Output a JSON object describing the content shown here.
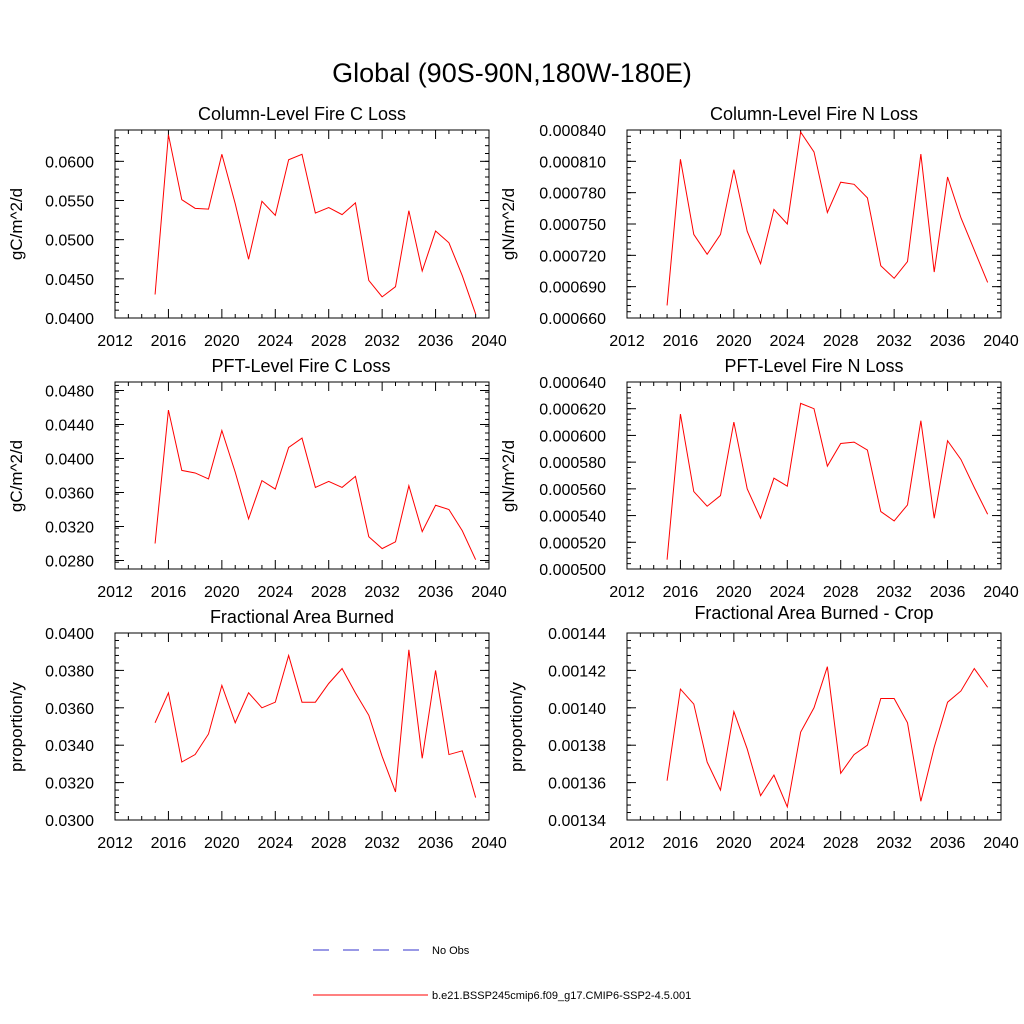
{
  "title": "Global (90S-90N,180W-180E)",
  "colors": {
    "model": "#ff0000",
    "obs": "#3333cc",
    "axes": "#000000"
  },
  "legend": {
    "obs_label": "No Obs",
    "model_label": "b.e21.BSSP245cmip6.f09_g17.CMIP6-SSP2-4.5.001"
  },
  "chart_data": [
    {
      "type": "line",
      "title": "Column-Level Fire C Loss",
      "xlabel": "",
      "ylabel": "gC/m^2/d",
      "xlim": [
        2012,
        2040
      ],
      "ylim": [
        0.04,
        0.064
      ],
      "xticks": [
        "2012",
        "2016",
        "2020",
        "2024",
        "2028",
        "2032",
        "2036",
        "2040"
      ],
      "yticks": [
        "0.0400",
        "0.0450",
        "0.0500",
        "0.0550",
        "0.0600"
      ],
      "series": [
        {
          "name": "b.e21.BSSP245cmip6.f09_g17.CMIP6-SSP2-4.5.001",
          "x": [
            2015,
            2016,
            2017,
            2018,
            2019,
            2020,
            2021,
            2022,
            2023,
            2024,
            2025,
            2026,
            2027,
            2028,
            2029,
            2030,
            2031,
            2032,
            2033,
            2034,
            2035,
            2036,
            2037,
            2038,
            2039
          ],
          "values": [
            0.043,
            0.0634,
            0.0551,
            0.054,
            0.0539,
            0.0609,
            0.0546,
            0.0475,
            0.0549,
            0.0531,
            0.0602,
            0.0609,
            0.0534,
            0.0541,
            0.0532,
            0.0547,
            0.0448,
            0.0427,
            0.044,
            0.0537,
            0.046,
            0.0511,
            0.0496,
            0.0454,
            0.0405
          ]
        }
      ]
    },
    {
      "type": "line",
      "title": "Column-Level Fire N Loss",
      "xlabel": "",
      "ylabel": "gN/m^2/d",
      "xlim": [
        2012,
        2040
      ],
      "ylim": [
        0.00066,
        0.00084
      ],
      "xticks": [
        "2012",
        "2016",
        "2020",
        "2024",
        "2028",
        "2032",
        "2036",
        "2040"
      ],
      "yticks": [
        "0.000660",
        "0.000690",
        "0.000720",
        "0.000750",
        "0.000780",
        "0.000810",
        "0.000840"
      ],
      "series": [
        {
          "name": "b.e21.BSSP245cmip6.f09_g17.CMIP6-SSP2-4.5.001",
          "x": [
            2015,
            2016,
            2017,
            2018,
            2019,
            2020,
            2021,
            2022,
            2023,
            2024,
            2025,
            2026,
            2027,
            2028,
            2029,
            2030,
            2031,
            2032,
            2033,
            2034,
            2035,
            2036,
            2037,
            2038,
            2039
          ],
          "values": [
            0.000672,
            0.000812,
            0.00074,
            0.000721,
            0.00074,
            0.000802,
            0.000743,
            0.000712,
            0.000764,
            0.00075,
            0.000838,
            0.000819,
            0.000761,
            0.00079,
            0.000788,
            0.000775,
            0.00071,
            0.000698,
            0.000714,
            0.000817,
            0.000704,
            0.000795,
            0.000756,
            0.000725,
            0.000694
          ]
        }
      ]
    },
    {
      "type": "line",
      "title": "PFT-Level Fire C Loss",
      "xlabel": "",
      "ylabel": "gC/m^2/d",
      "xlim": [
        2012,
        2040
      ],
      "ylim": [
        0.027,
        0.049
      ],
      "xticks": [
        "2012",
        "2016",
        "2020",
        "2024",
        "2028",
        "2032",
        "2036",
        "2040"
      ],
      "yticks": [
        "0.0280",
        "0.0320",
        "0.0360",
        "0.0400",
        "0.0440",
        "0.0480"
      ],
      "series": [
        {
          "name": "b.e21.BSSP245cmip6.f09_g17.CMIP6-SSP2-4.5.001",
          "x": [
            2015,
            2016,
            2017,
            2018,
            2019,
            2020,
            2021,
            2022,
            2023,
            2024,
            2025,
            2026,
            2027,
            2028,
            2029,
            2030,
            2031,
            2032,
            2033,
            2034,
            2035,
            2036,
            2037,
            2038,
            2039
          ],
          "values": [
            0.03,
            0.0457,
            0.0386,
            0.0383,
            0.0376,
            0.0433,
            0.0384,
            0.0329,
            0.0374,
            0.0364,
            0.0413,
            0.0424,
            0.0366,
            0.0373,
            0.0366,
            0.0379,
            0.0308,
            0.0294,
            0.0302,
            0.0368,
            0.0314,
            0.0345,
            0.034,
            0.0315,
            0.0281
          ]
        }
      ]
    },
    {
      "type": "line",
      "title": "PFT-Level Fire N Loss",
      "xlabel": "",
      "ylabel": "gN/m^2/d",
      "xlim": [
        2012,
        2040
      ],
      "ylim": [
        0.0005,
        0.00064
      ],
      "xticks": [
        "2012",
        "2016",
        "2020",
        "2024",
        "2028",
        "2032",
        "2036",
        "2040"
      ],
      "yticks": [
        "0.000500",
        "0.000520",
        "0.000540",
        "0.000560",
        "0.000580",
        "0.000600",
        "0.000620",
        "0.000640"
      ],
      "series": [
        {
          "name": "b.e21.BSSP245cmip6.f09_g17.CMIP6-SSP2-4.5.001",
          "x": [
            2015,
            2016,
            2017,
            2018,
            2019,
            2020,
            2021,
            2022,
            2023,
            2024,
            2025,
            2026,
            2027,
            2028,
            2029,
            2030,
            2031,
            2032,
            2033,
            2034,
            2035,
            2036,
            2037,
            2038,
            2039
          ],
          "values": [
            0.000507,
            0.000616,
            0.000558,
            0.000547,
            0.000555,
            0.00061,
            0.00056,
            0.000538,
            0.000568,
            0.000562,
            0.000624,
            0.00062,
            0.000577,
            0.000594,
            0.000595,
            0.000589,
            0.000543,
            0.000536,
            0.000548,
            0.000611,
            0.000538,
            0.000596,
            0.000582,
            0.000561,
            0.000541
          ]
        }
      ]
    },
    {
      "type": "line",
      "title": "Fractional Area Burned",
      "xlabel": "",
      "ylabel": "proportion/y",
      "xlim": [
        2012,
        2040
      ],
      "ylim": [
        0.03,
        0.04
      ],
      "xticks": [
        "2012",
        "2016",
        "2020",
        "2024",
        "2028",
        "2032",
        "2036",
        "2040"
      ],
      "yticks": [
        "0.0300",
        "0.0320",
        "0.0340",
        "0.0360",
        "0.0380",
        "0.0400"
      ],
      "series": [
        {
          "name": "b.e21.BSSP245cmip6.f09_g17.CMIP6-SSP2-4.5.001",
          "x": [
            2015,
            2016,
            2017,
            2018,
            2019,
            2020,
            2021,
            2022,
            2023,
            2024,
            2025,
            2026,
            2027,
            2028,
            2029,
            2030,
            2031,
            2032,
            2033,
            2034,
            2035,
            2036,
            2037,
            2038,
            2039
          ],
          "values": [
            0.0352,
            0.0368,
            0.0331,
            0.0335,
            0.0346,
            0.0372,
            0.0352,
            0.0368,
            0.036,
            0.0363,
            0.0388,
            0.0363,
            0.0363,
            0.0373,
            0.0381,
            0.0368,
            0.0356,
            0.0334,
            0.0315,
            0.0391,
            0.0333,
            0.038,
            0.0335,
            0.0337,
            0.0312
          ]
        }
      ]
    },
    {
      "type": "line",
      "title": "Fractional Area Burned - Crop",
      "xlabel": "",
      "ylabel": "proportion/y",
      "xlim": [
        2012,
        2040
      ],
      "ylim": [
        0.00134,
        0.00144
      ],
      "xticks": [
        "2012",
        "2016",
        "2020",
        "2024",
        "2028",
        "2032",
        "2036",
        "2040"
      ],
      "yticks": [
        "0.00134",
        "0.00136",
        "0.00138",
        "0.00140",
        "0.00142",
        "0.00144"
      ],
      "series": [
        {
          "name": "b.e21.BSSP245cmip6.f09_g17.CMIP6-SSP2-4.5.001",
          "x": [
            2015,
            2016,
            2017,
            2018,
            2019,
            2020,
            2021,
            2022,
            2023,
            2024,
            2025,
            2026,
            2027,
            2028,
            2029,
            2030,
            2031,
            2032,
            2033,
            2034,
            2035,
            2036,
            2037,
            2038,
            2039
          ],
          "values": [
            0.001361,
            0.00141,
            0.001402,
            0.001371,
            0.001356,
            0.001398,
            0.001378,
            0.001353,
            0.001364,
            0.001347,
            0.001387,
            0.0014,
            0.001422,
            0.001365,
            0.001375,
            0.00138,
            0.001405,
            0.001405,
            0.001392,
            0.00135,
            0.001379,
            0.001403,
            0.001409,
            0.001421,
            0.001411
          ]
        }
      ]
    }
  ]
}
